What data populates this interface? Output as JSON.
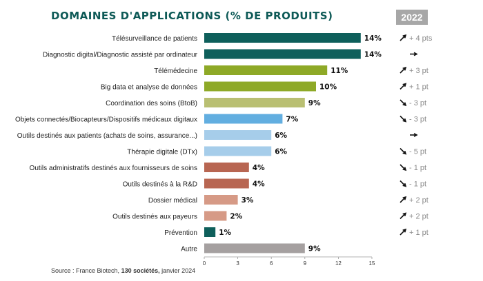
{
  "header": {
    "title": "DOMAINES D'APPLICATIONS (% DE PRODUITS)",
    "year_badge": "2022"
  },
  "source": {
    "prefix": "Source : France Biotech,",
    "bold": "130 sociétés,",
    "suffix": "janvier 2024"
  },
  "chart_data": {
    "type": "bar",
    "orientation": "horizontal",
    "title": "DOMAINES D'APPLICATIONS (% DE PRODUITS)",
    "categories": [
      "Télésurveillance de patients",
      "Diagnostic digital/Diagnostic assisté par ordinateur",
      "Télémédecine",
      "Big data et analyse de données",
      "Coordination des soins (BtoB)",
      "Objets connectés/Biocapteurs/Dispositifs médicaux digitaux",
      "Outils destinés aux patients (achats de soins, assurance...)",
      "Thérapie digitale (DTx)",
      "Outils administratifs destinés aux fournisseurs de soins",
      "Outils destinés à la R&D",
      "Dossier médical",
      "Outils destinés aux payeurs",
      "Prévention",
      "Autre"
    ],
    "values": [
      14,
      14,
      11,
      10,
      9,
      7,
      6,
      6,
      4,
      4,
      3,
      2,
      1,
      9
    ],
    "value_labels": [
      "14%",
      "14%",
      "11%",
      "10%",
      "9%",
      "7%",
      "6%",
      "6%",
      "4%",
      "4%",
      "3%",
      "2%",
      "1%",
      "9%"
    ],
    "colors": [
      "#0e5f5b",
      "#0e5f5b",
      "#8ea927",
      "#8ea927",
      "#b9bf72",
      "#62aee0",
      "#a6cdea",
      "#a6cdea",
      "#b86652",
      "#b86652",
      "#d69a86",
      "#d69a86",
      "#0e5f5b",
      "#a5a0a0"
    ],
    "trends": [
      {
        "arrow": "up",
        "text": "+ 4 pts"
      },
      {
        "arrow": "flat",
        "text": ""
      },
      {
        "arrow": "up",
        "text": "+ 3 pt"
      },
      {
        "arrow": "up",
        "text": "+ 1 pt"
      },
      {
        "arrow": "down",
        "text": "- 3 pt"
      },
      {
        "arrow": "down",
        "text": "- 3 pt"
      },
      {
        "arrow": "flat",
        "text": ""
      },
      {
        "arrow": "down",
        "text": "- 5 pt"
      },
      {
        "arrow": "down",
        "text": "- 1 pt"
      },
      {
        "arrow": "down",
        "text": "- 1 pt"
      },
      {
        "arrow": "up",
        "text": "+ 2 pt"
      },
      {
        "arrow": "up",
        "text": "+ 2 pt"
      },
      {
        "arrow": "up",
        "text": "+ 1 pt"
      },
      {
        "arrow": "none",
        "text": ""
      }
    ],
    "xticks": [
      0,
      3,
      6,
      9,
      12,
      15
    ],
    "xlim": [
      0,
      15
    ],
    "grid": false,
    "legend": "none"
  }
}
